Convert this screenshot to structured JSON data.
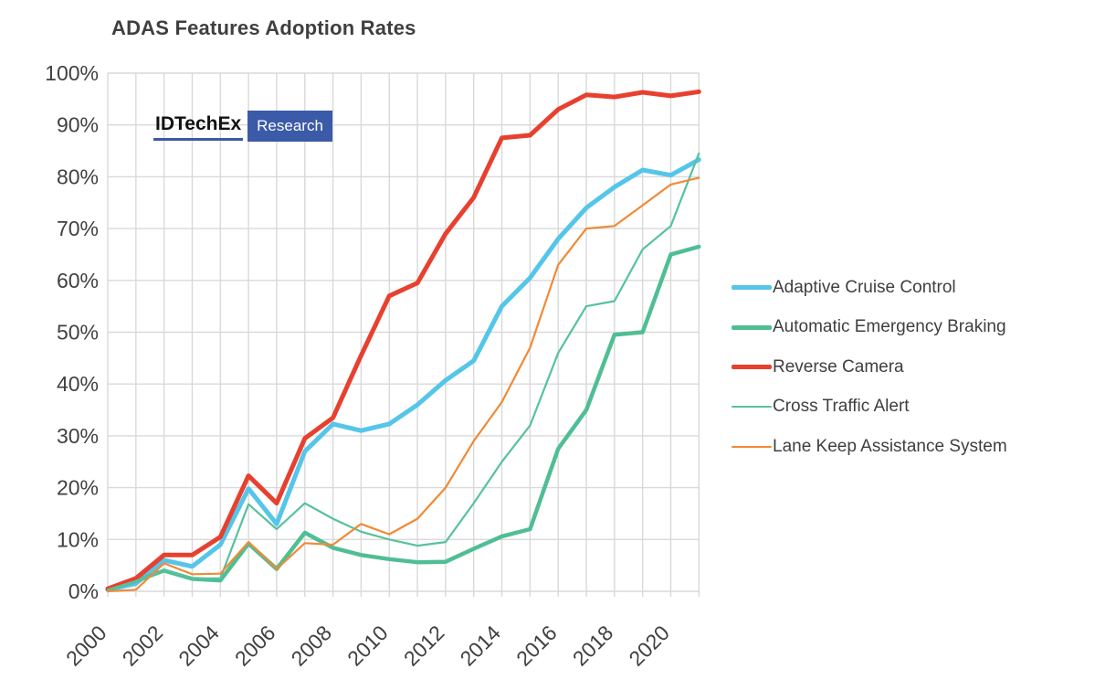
{
  "chart_data": {
    "type": "line",
    "title": "ADAS Features Adoption Rates",
    "xlabel": "",
    "ylabel": "",
    "x": [
      2000,
      2001,
      2002,
      2003,
      2004,
      2005,
      2006,
      2007,
      2008,
      2009,
      2010,
      2011,
      2012,
      2013,
      2014,
      2015,
      2016,
      2017,
      2018,
      2019,
      2020,
      2021
    ],
    "x_tick_labels": [
      "2000",
      "2002",
      "2004",
      "2006",
      "2008",
      "2010",
      "2012",
      "2014",
      "2016",
      "2018",
      "2020"
    ],
    "y_tick_labels": [
      "0%",
      "10%",
      "20%",
      "30%",
      "40%",
      "50%",
      "60%",
      "70%",
      "80%",
      "90%",
      "100%"
    ],
    "ylim": [
      0,
      100
    ],
    "grid": true,
    "legend_position": "right",
    "series": [
      {
        "name": "Adaptive Cruise Control",
        "color": "#55c5e9",
        "width": 5,
        "values": [
          0.3,
          1.5,
          6,
          4.8,
          9,
          19.8,
          13,
          27,
          32.3,
          31,
          32.3,
          36,
          40.7,
          44.5,
          55,
          60.5,
          68,
          74,
          78,
          81.3,
          80.3,
          83.3
        ]
      },
      {
        "name": "Automatic Emergency Braking",
        "color": "#50be95",
        "width": 4.5,
        "values": [
          0.3,
          2,
          4,
          2.4,
          2.1,
          9.2,
          4.3,
          11.3,
          8.4,
          7,
          6.2,
          5.6,
          5.7,
          8.2,
          10.6,
          12,
          27.5,
          35,
          49.5,
          50,
          65,
          66.5
        ]
      },
      {
        "name": "Reverse Camera",
        "color": "#e8402f",
        "width": 5,
        "values": [
          0.5,
          2.5,
          7,
          7,
          10.5,
          22.3,
          17,
          29.5,
          33.5,
          45.5,
          57,
          59.5,
          69,
          76,
          87.5,
          88,
          93,
          95.8,
          95.4,
          96.3,
          95.6,
          96.4
        ]
      },
      {
        "name": "Cross Traffic Alert",
        "color": "#57c1a0",
        "width": 2.2,
        "values": [
          0.3,
          2,
          4.2,
          2.5,
          2.5,
          16.8,
          12,
          17,
          14,
          11.5,
          10,
          8.8,
          9.5,
          17,
          25,
          32,
          46,
          55,
          56,
          66,
          70.5,
          84.5
        ]
      },
      {
        "name": "Lane Keep Assistance System",
        "color": "#f08a36",
        "width": 2.2,
        "values": [
          0,
          0.3,
          5.4,
          3.3,
          3.4,
          9.5,
          4.3,
          9.3,
          9,
          13,
          11,
          14,
          20,
          29,
          36.5,
          47,
          63,
          70,
          70.5,
          74.5,
          78.5,
          79.8
        ]
      }
    ],
    "gridline_color": "#d9d9d9",
    "tick_label_color": "#404040",
    "logo": {
      "wordmark": "IDTechEx",
      "badge": "Research",
      "badge_color": "#3b5aa8"
    }
  }
}
